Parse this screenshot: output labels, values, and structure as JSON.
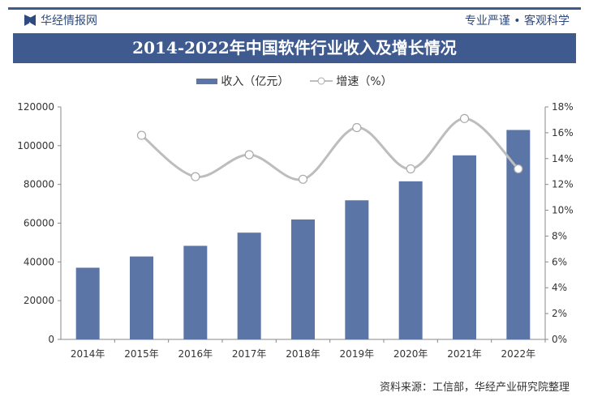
{
  "header": {
    "brand": "华经情报网",
    "slogan": "专业严谨 • 客观科学"
  },
  "source": "资料来源：工信部，华经产业研究院整理",
  "colors": {
    "bar": "#5b76a6",
    "line": "#bdbdbd",
    "title_bg": "#3e5a8f"
  },
  "chart_data": {
    "type": "bar+line",
    "title": "2014-2022年中国软件行业收入及增长情况",
    "categories": [
      "2014年",
      "2015年",
      "2016年",
      "2017年",
      "2018年",
      "2019年",
      "2020年",
      "2021年",
      "2022年"
    ],
    "series": [
      {
        "name": "收入（亿元）",
        "type": "bar",
        "axis": "left",
        "values": [
          37000,
          42800,
          48300,
          55100,
          61900,
          71800,
          81600,
          95000,
          108100
        ]
      },
      {
        "name": "增速（%）",
        "type": "line",
        "axis": "right",
        "values": [
          null,
          15.8,
          12.6,
          14.3,
          12.4,
          16.4,
          13.2,
          17.1,
          13.2
        ]
      }
    ],
    "ylim": [
      0,
      120000
    ],
    "yticks": [
      "0",
      "20000",
      "40000",
      "60000",
      "80000",
      "100000",
      "120000"
    ],
    "y2lim": [
      0,
      18
    ],
    "y2ticks": [
      "0%",
      "2%",
      "4%",
      "6%",
      "8%",
      "10%",
      "12%",
      "14%",
      "16%",
      "18%"
    ],
    "legend": "top"
  }
}
